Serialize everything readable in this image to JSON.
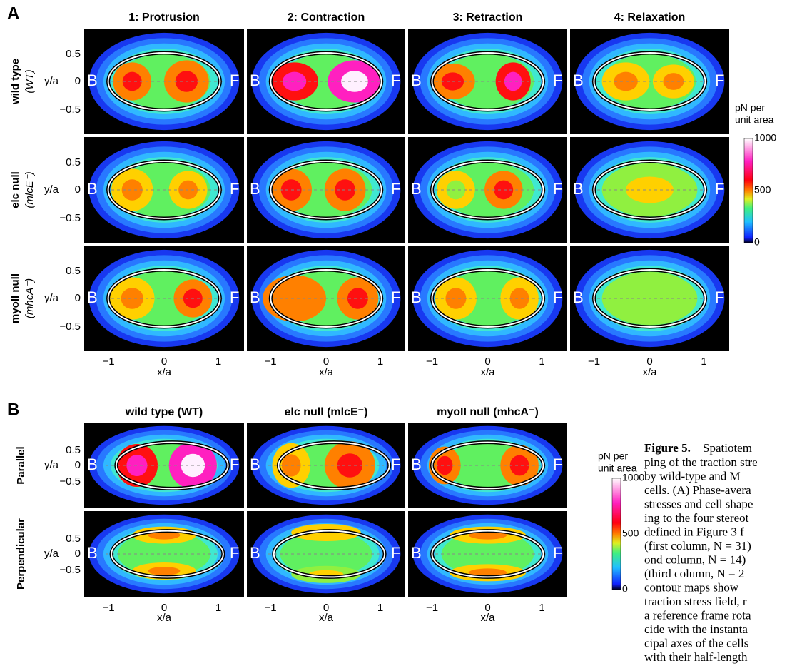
{
  "panel_a": {
    "label": "A",
    "columns": [
      "1: Protrusion",
      "2: Contraction",
      "3: Retraction",
      "4: Relaxation"
    ],
    "rows": [
      {
        "line1": "wild type",
        "line2": "(WT)"
      },
      {
        "line1": "elc null",
        "line2": "(mlcE⁻)"
      },
      {
        "line1": "myoII null",
        "line2": "(mhcA⁻)"
      }
    ],
    "colorbar": {
      "title1": "pN per",
      "title2": "unit area",
      "ticks": [
        "1000",
        "500",
        "0"
      ]
    }
  },
  "panel_b": {
    "label": "B",
    "columns": [
      "wild type (WT)",
      "elc null (mlcE⁻)",
      "myoII null (mhcA⁻)"
    ],
    "rows": [
      "Parallel",
      "Perpendicular"
    ],
    "colorbar": {
      "title1": "pN per",
      "title2": "unit area",
      "ticks": [
        "1000",
        "500",
        "0"
      ]
    }
  },
  "axes": {
    "xticks": [
      "−1",
      "0",
      "1"
    ],
    "xlabel": "x/a",
    "yticks": [
      "0.5",
      "0",
      "−0.5"
    ],
    "ylabel": "y/a",
    "back": "B",
    "front": "F"
  },
  "caption": {
    "lead": "Figure 5.",
    "lines": [
      " Spatiotem",
      "ping of the traction stre",
      "by wild-type and M",
      "cells. (A) Phase-avera",
      "stresses and cell shape",
      "ing to the four stereot",
      "defined in Figure 3 f",
      "(first column, N = 31)",
      "ond column, N = 14)",
      "(third column, N = 2",
      "contour maps show",
      "traction stress field, r",
      "a reference frame rota",
      "cide with the instanta",
      "cipal axes of the cells",
      "with their half-length"
    ]
  }
}
